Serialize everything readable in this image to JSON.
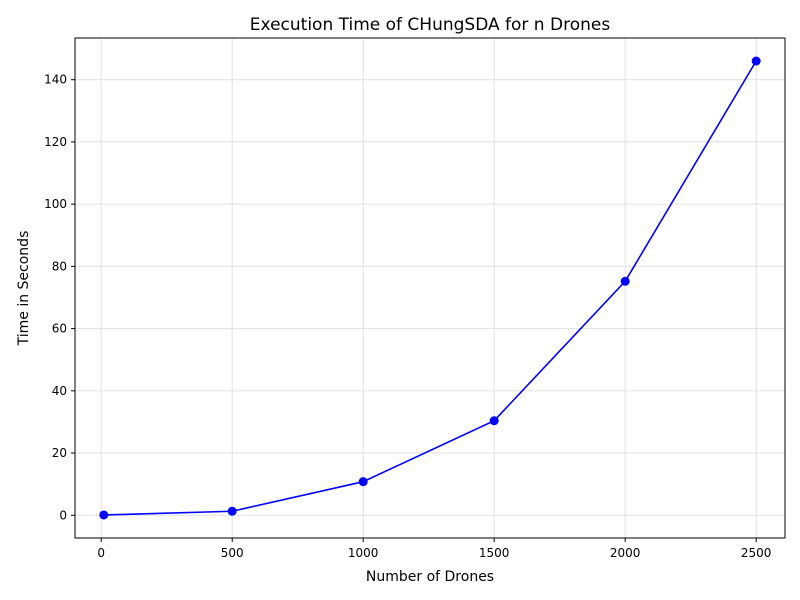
{
  "chart_data": {
    "type": "line",
    "title": "Execution Time of CHungSDA for n Drones",
    "xlabel": "Number of Drones",
    "ylabel": "Time in Seconds",
    "x": [
      10,
      500,
      1000,
      1500,
      2000,
      2500
    ],
    "series": [
      {
        "values": [
          0.1,
          1.3,
          10.8,
          30.4,
          75.2,
          146.0
        ]
      }
    ],
    "xlim": [
      -100,
      2610
    ],
    "ylim": [
      -7.3,
      153.4
    ],
    "xticks": [
      0,
      500,
      1000,
      1500,
      2000,
      2500
    ],
    "yticks": [
      0,
      20,
      40,
      60,
      80,
      100,
      120,
      140
    ],
    "grid": true,
    "legend": "none",
    "colors": {
      "line": "#0000ff",
      "marker": "#0000ff",
      "grid": "#e0e0e0",
      "axes": "#000000"
    }
  }
}
